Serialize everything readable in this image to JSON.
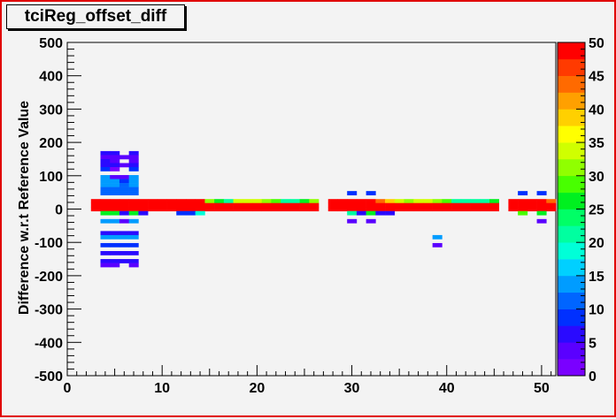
{
  "chart_data": {
    "type": "heatmap",
    "title": "tciReg_offset_diff",
    "xlabel": "",
    "ylabel": "Difference w.r.t Reference Value",
    "xlim": [
      0,
      51.5
    ],
    "ylim": [
      -500,
      500
    ],
    "x_ticks": [
      0,
      10,
      20,
      30,
      40,
      50
    ],
    "y_ticks": [
      -500,
      -400,
      -300,
      -200,
      -100,
      0,
      100,
      200,
      300,
      400,
      500
    ],
    "x_tick_labels": [
      "0",
      "10",
      "20",
      "30",
      "40",
      "50"
    ],
    "y_tick_labels": [
      "-500",
      "-400",
      "-300",
      "-200",
      "-100",
      "0",
      "100",
      "200",
      "300",
      "400",
      "500"
    ],
    "bin_width_x": 1,
    "bin_height_y": 12,
    "z_range": [
      0,
      50
    ],
    "colorbar_ticks": [
      0,
      5,
      10,
      15,
      20,
      25,
      30,
      35,
      40,
      45,
      50
    ],
    "colorbar_tick_labels": [
      "0",
      "5",
      "10",
      "15",
      "20",
      "25",
      "30",
      "35",
      "40",
      "45",
      "50"
    ],
    "grid": false,
    "cells": [
      {
        "x": 4,
        "y": 168,
        "z": 6
      },
      {
        "x": 5,
        "y": 168,
        "z": 6
      },
      {
        "x": 7,
        "y": 168,
        "z": 6
      },
      {
        "x": 4,
        "y": 156,
        "z": 4
      },
      {
        "x": 5,
        "y": 156,
        "z": 4
      },
      {
        "x": 6,
        "y": 156,
        "z": 3
      },
      {
        "x": 7,
        "y": 156,
        "z": 4
      },
      {
        "x": 4,
        "y": 144,
        "z": 7
      },
      {
        "x": 5,
        "y": 144,
        "z": 3
      },
      {
        "x": 7,
        "y": 144,
        "z": 3
      },
      {
        "x": 4,
        "y": 132,
        "z": 6
      },
      {
        "x": 5,
        "y": 132,
        "z": 7
      },
      {
        "x": 6,
        "y": 132,
        "z": 3
      },
      {
        "x": 7,
        "y": 132,
        "z": 6
      },
      {
        "x": 4,
        "y": 120,
        "z": 9
      },
      {
        "x": 5,
        "y": 120,
        "z": 2
      },
      {
        "x": 7,
        "y": 120,
        "z": 9
      },
      {
        "x": 4,
        "y": 96,
        "z": 13
      },
      {
        "x": 5,
        "y": 96,
        "z": 3
      },
      {
        "x": 6,
        "y": 96,
        "z": 4
      },
      {
        "x": 7,
        "y": 96,
        "z": 13
      },
      {
        "x": 4,
        "y": 84,
        "z": 13
      },
      {
        "x": 5,
        "y": 84,
        "z": 13
      },
      {
        "x": 6,
        "y": 84,
        "z": 9
      },
      {
        "x": 7,
        "y": 84,
        "z": 13
      },
      {
        "x": 4,
        "y": 72,
        "z": 13
      },
      {
        "x": 5,
        "y": 72,
        "z": 13
      },
      {
        "x": 6,
        "y": 72,
        "z": 10
      },
      {
        "x": 7,
        "y": 72,
        "z": 13
      },
      {
        "x": 4,
        "y": 60,
        "z": 11
      },
      {
        "x": 5,
        "y": 60,
        "z": 11
      },
      {
        "x": 6,
        "y": 60,
        "z": 11
      },
      {
        "x": 7,
        "y": 60,
        "z": 11
      },
      {
        "x": 4,
        "y": 48,
        "z": 10
      },
      {
        "x": 5,
        "y": 48,
        "z": 11
      },
      {
        "x": 6,
        "y": 48,
        "z": 11
      },
      {
        "x": 7,
        "y": 48,
        "z": 10
      },
      {
        "x": 30,
        "y": 48,
        "z": 8
      },
      {
        "x": 32,
        "y": 48,
        "z": 8
      },
      {
        "x": 48,
        "y": 48,
        "z": 8
      },
      {
        "x": 50,
        "y": 48,
        "z": 8
      },
      {
        "x": 3,
        "y": 24,
        "z": 49
      },
      {
        "x": 4,
        "y": 24,
        "z": 49
      },
      {
        "x": 5,
        "y": 24,
        "z": 49
      },
      {
        "x": 6,
        "y": 24,
        "z": 49
      },
      {
        "x": 7,
        "y": 24,
        "z": 49
      },
      {
        "x": 8,
        "y": 24,
        "z": 49
      },
      {
        "x": 9,
        "y": 24,
        "z": 49
      },
      {
        "x": 10,
        "y": 24,
        "z": 49
      },
      {
        "x": 11,
        "y": 24,
        "z": 49
      },
      {
        "x": 12,
        "y": 24,
        "z": 49
      },
      {
        "x": 13,
        "y": 24,
        "z": 49
      },
      {
        "x": 14,
        "y": 24,
        "z": 49
      },
      {
        "x": 15,
        "y": 24,
        "z": 30
      },
      {
        "x": 16,
        "y": 24,
        "z": 26
      },
      {
        "x": 17,
        "y": 24,
        "z": 22
      },
      {
        "x": 18,
        "y": 24,
        "z": 34
      },
      {
        "x": 19,
        "y": 24,
        "z": 34
      },
      {
        "x": 20,
        "y": 24,
        "z": 34
      },
      {
        "x": 21,
        "y": 24,
        "z": 30
      },
      {
        "x": 22,
        "y": 24,
        "z": 28
      },
      {
        "x": 23,
        "y": 24,
        "z": 22
      },
      {
        "x": 24,
        "y": 24,
        "z": 22
      },
      {
        "x": 25,
        "y": 24,
        "z": 26
      },
      {
        "x": 26,
        "y": 24,
        "z": 32
      },
      {
        "x": 28,
        "y": 24,
        "z": 49
      },
      {
        "x": 29,
        "y": 24,
        "z": 49
      },
      {
        "x": 30,
        "y": 24,
        "z": 49
      },
      {
        "x": 31,
        "y": 24,
        "z": 49
      },
      {
        "x": 32,
        "y": 24,
        "z": 49
      },
      {
        "x": 33,
        "y": 24,
        "z": 44
      },
      {
        "x": 34,
        "y": 24,
        "z": 38
      },
      {
        "x": 35,
        "y": 24,
        "z": 34
      },
      {
        "x": 36,
        "y": 24,
        "z": 30
      },
      {
        "x": 37,
        "y": 24,
        "z": 34
      },
      {
        "x": 38,
        "y": 24,
        "z": 34
      },
      {
        "x": 39,
        "y": 24,
        "z": 30
      },
      {
        "x": 40,
        "y": 24,
        "z": 28
      },
      {
        "x": 41,
        "y": 24,
        "z": 22
      },
      {
        "x": 42,
        "y": 24,
        "z": 22
      },
      {
        "x": 43,
        "y": 24,
        "z": 22
      },
      {
        "x": 44,
        "y": 24,
        "z": 22
      },
      {
        "x": 45,
        "y": 24,
        "z": 26
      },
      {
        "x": 47,
        "y": 24,
        "z": 49
      },
      {
        "x": 48,
        "y": 24,
        "z": 49
      },
      {
        "x": 49,
        "y": 24,
        "z": 49
      },
      {
        "x": 50,
        "y": 24,
        "z": 49
      },
      {
        "x": 51,
        "y": 24,
        "z": 44
      },
      {
        "x": 3,
        "y": 12,
        "z": 49
      },
      {
        "x": 4,
        "y": 12,
        "z": 49
      },
      {
        "x": 5,
        "y": 12,
        "z": 49
      },
      {
        "x": 6,
        "y": 12,
        "z": 49
      },
      {
        "x": 7,
        "y": 12,
        "z": 49
      },
      {
        "x": 8,
        "y": 12,
        "z": 49
      },
      {
        "x": 9,
        "y": 12,
        "z": 49
      },
      {
        "x": 10,
        "y": 12,
        "z": 49
      },
      {
        "x": 11,
        "y": 12,
        "z": 49
      },
      {
        "x": 12,
        "y": 12,
        "z": 49
      },
      {
        "x": 13,
        "y": 12,
        "z": 49
      },
      {
        "x": 14,
        "y": 12,
        "z": 49
      },
      {
        "x": 15,
        "y": 12,
        "z": 49
      },
      {
        "x": 16,
        "y": 12,
        "z": 49
      },
      {
        "x": 17,
        "y": 12,
        "z": 49
      },
      {
        "x": 18,
        "y": 12,
        "z": 49
      },
      {
        "x": 19,
        "y": 12,
        "z": 49
      },
      {
        "x": 20,
        "y": 12,
        "z": 49
      },
      {
        "x": 21,
        "y": 12,
        "z": 49
      },
      {
        "x": 22,
        "y": 12,
        "z": 49
      },
      {
        "x": 23,
        "y": 12,
        "z": 49
      },
      {
        "x": 24,
        "y": 12,
        "z": 49
      },
      {
        "x": 25,
        "y": 12,
        "z": 49
      },
      {
        "x": 26,
        "y": 12,
        "z": 49
      },
      {
        "x": 28,
        "y": 12,
        "z": 49
      },
      {
        "x": 29,
        "y": 12,
        "z": 49
      },
      {
        "x": 30,
        "y": 12,
        "z": 49
      },
      {
        "x": 31,
        "y": 12,
        "z": 49
      },
      {
        "x": 32,
        "y": 12,
        "z": 49
      },
      {
        "x": 33,
        "y": 12,
        "z": 49
      },
      {
        "x": 34,
        "y": 12,
        "z": 49
      },
      {
        "x": 35,
        "y": 12,
        "z": 49
      },
      {
        "x": 36,
        "y": 12,
        "z": 49
      },
      {
        "x": 37,
        "y": 12,
        "z": 49
      },
      {
        "x": 38,
        "y": 12,
        "z": 49
      },
      {
        "x": 39,
        "y": 12,
        "z": 49
      },
      {
        "x": 40,
        "y": 12,
        "z": 49
      },
      {
        "x": 41,
        "y": 12,
        "z": 49
      },
      {
        "x": 42,
        "y": 12,
        "z": 49
      },
      {
        "x": 43,
        "y": 12,
        "z": 49
      },
      {
        "x": 44,
        "y": 12,
        "z": 49
      },
      {
        "x": 45,
        "y": 12,
        "z": 49
      },
      {
        "x": 47,
        "y": 12,
        "z": 49
      },
      {
        "x": 48,
        "y": 12,
        "z": 49
      },
      {
        "x": 49,
        "y": 12,
        "z": 49
      },
      {
        "x": 50,
        "y": 12,
        "z": 49
      },
      {
        "x": 51,
        "y": 12,
        "z": 49
      },
      {
        "x": 3,
        "y": 0,
        "z": 49
      },
      {
        "x": 4,
        "y": 0,
        "z": 49
      },
      {
        "x": 5,
        "y": 0,
        "z": 49
      },
      {
        "x": 6,
        "y": 0,
        "z": 49
      },
      {
        "x": 7,
        "y": 0,
        "z": 49
      },
      {
        "x": 8,
        "y": 0,
        "z": 49
      },
      {
        "x": 9,
        "y": 0,
        "z": 49
      },
      {
        "x": 10,
        "y": 0,
        "z": 49
      },
      {
        "x": 11,
        "y": 0,
        "z": 49
      },
      {
        "x": 12,
        "y": 0,
        "z": 49
      },
      {
        "x": 13,
        "y": 0,
        "z": 49
      },
      {
        "x": 14,
        "y": 0,
        "z": 49
      },
      {
        "x": 15,
        "y": 0,
        "z": 49
      },
      {
        "x": 16,
        "y": 0,
        "z": 49
      },
      {
        "x": 17,
        "y": 0,
        "z": 49
      },
      {
        "x": 18,
        "y": 0,
        "z": 49
      },
      {
        "x": 19,
        "y": 0,
        "z": 49
      },
      {
        "x": 20,
        "y": 0,
        "z": 49
      },
      {
        "x": 21,
        "y": 0,
        "z": 49
      },
      {
        "x": 22,
        "y": 0,
        "z": 49
      },
      {
        "x": 23,
        "y": 0,
        "z": 49
      },
      {
        "x": 24,
        "y": 0,
        "z": 49
      },
      {
        "x": 25,
        "y": 0,
        "z": 49
      },
      {
        "x": 26,
        "y": 0,
        "z": 49
      },
      {
        "x": 28,
        "y": 0,
        "z": 49
      },
      {
        "x": 29,
        "y": 0,
        "z": 49
      },
      {
        "x": 30,
        "y": 0,
        "z": 49
      },
      {
        "x": 31,
        "y": 0,
        "z": 49
      },
      {
        "x": 32,
        "y": 0,
        "z": 49
      },
      {
        "x": 33,
        "y": 0,
        "z": 49
      },
      {
        "x": 34,
        "y": 0,
        "z": 49
      },
      {
        "x": 35,
        "y": 0,
        "z": 49
      },
      {
        "x": 36,
        "y": 0,
        "z": 49
      },
      {
        "x": 37,
        "y": 0,
        "z": 49
      },
      {
        "x": 38,
        "y": 0,
        "z": 49
      },
      {
        "x": 39,
        "y": 0,
        "z": 49
      },
      {
        "x": 40,
        "y": 0,
        "z": 49
      },
      {
        "x": 41,
        "y": 0,
        "z": 49
      },
      {
        "x": 42,
        "y": 0,
        "z": 49
      },
      {
        "x": 43,
        "y": 0,
        "z": 49
      },
      {
        "x": 44,
        "y": 0,
        "z": 49
      },
      {
        "x": 45,
        "y": 0,
        "z": 49
      },
      {
        "x": 47,
        "y": 0,
        "z": 49
      },
      {
        "x": 48,
        "y": 0,
        "z": 49
      },
      {
        "x": 49,
        "y": 0,
        "z": 49
      },
      {
        "x": 50,
        "y": 0,
        "z": 49
      },
      {
        "x": 51,
        "y": 0,
        "z": 49
      },
      {
        "x": 4,
        "y": -12,
        "z": 26
      },
      {
        "x": 5,
        "y": -12,
        "z": 26
      },
      {
        "x": 6,
        "y": -12,
        "z": 6
      },
      {
        "x": 7,
        "y": -12,
        "z": 26
      },
      {
        "x": 8,
        "y": -12,
        "z": 6
      },
      {
        "x": 12,
        "y": -12,
        "z": 9
      },
      {
        "x": 13,
        "y": -12,
        "z": 9
      },
      {
        "x": 14,
        "y": -12,
        "z": 18
      },
      {
        "x": 30,
        "y": -12,
        "z": 22
      },
      {
        "x": 31,
        "y": -12,
        "z": 6
      },
      {
        "x": 32,
        "y": -12,
        "z": 26
      },
      {
        "x": 33,
        "y": -12,
        "z": 6
      },
      {
        "x": 34,
        "y": -12,
        "z": 6
      },
      {
        "x": 48,
        "y": -12,
        "z": 28
      },
      {
        "x": 50,
        "y": -12,
        "z": 26
      },
      {
        "x": 4,
        "y": -36,
        "z": 13
      },
      {
        "x": 5,
        "y": -36,
        "z": 13
      },
      {
        "x": 6,
        "y": -36,
        "z": 3
      },
      {
        "x": 7,
        "y": -36,
        "z": 13
      },
      {
        "x": 30,
        "y": -36,
        "z": 3
      },
      {
        "x": 32,
        "y": -36,
        "z": 3
      },
      {
        "x": 50,
        "y": -36,
        "z": 3
      },
      {
        "x": 4,
        "y": -72,
        "z": 7
      },
      {
        "x": 5,
        "y": -72,
        "z": 7
      },
      {
        "x": 6,
        "y": -72,
        "z": 7
      },
      {
        "x": 7,
        "y": -72,
        "z": 7
      },
      {
        "x": 4,
        "y": -84,
        "z": 13
      },
      {
        "x": 5,
        "y": -84,
        "z": 13
      },
      {
        "x": 6,
        "y": -84,
        "z": 13
      },
      {
        "x": 7,
        "y": -84,
        "z": 13
      },
      {
        "x": 39,
        "y": -84,
        "z": 13
      },
      {
        "x": 4,
        "y": -108,
        "z": 9
      },
      {
        "x": 5,
        "y": -108,
        "z": 9
      },
      {
        "x": 6,
        "y": -108,
        "z": 9
      },
      {
        "x": 7,
        "y": -108,
        "z": 9
      },
      {
        "x": 39,
        "y": -108,
        "z": 4
      },
      {
        "x": 4,
        "y": -132,
        "z": 7
      },
      {
        "x": 5,
        "y": -132,
        "z": 7
      },
      {
        "x": 6,
        "y": -132,
        "z": 7
      },
      {
        "x": 7,
        "y": -132,
        "z": 7
      },
      {
        "x": 4,
        "y": -156,
        "z": 5
      },
      {
        "x": 5,
        "y": -156,
        "z": 5
      },
      {
        "x": 6,
        "y": -156,
        "z": 5
      },
      {
        "x": 7,
        "y": -156,
        "z": 5
      },
      {
        "x": 4,
        "y": -168,
        "z": 3
      },
      {
        "x": 5,
        "y": -168,
        "z": 3
      },
      {
        "x": 7,
        "y": -168,
        "z": 3
      }
    ]
  }
}
